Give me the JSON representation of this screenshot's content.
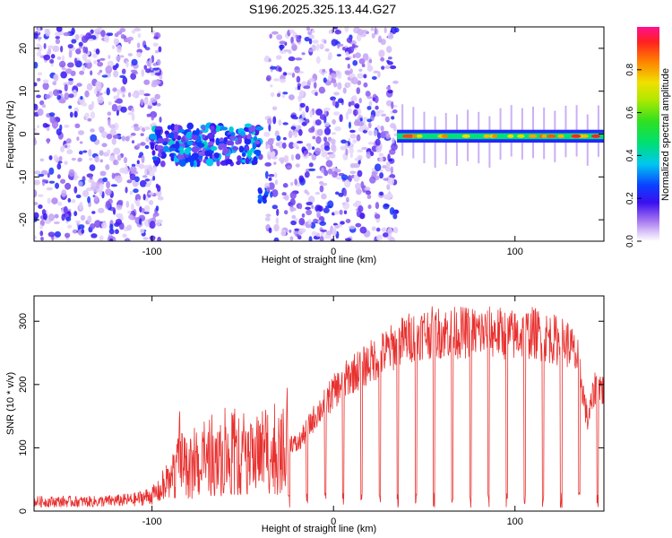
{
  "figure_title": "S196.2025.325.13.44.G27",
  "chart_data": [
    {
      "type": "heatmap",
      "title": "S196.2025.325.13.44.G27",
      "xlabel": "Height of straight line (km)",
      "ylabel": "Frequency (Hz)",
      "xlim": [
        -165,
        149
      ],
      "ylim": [
        -25,
        25
      ],
      "x_ticks": [
        -100,
        0,
        100
      ],
      "y_ticks": [
        -20,
        -10,
        0,
        10,
        20
      ],
      "x_tick_labels": [
        "-100",
        "0",
        "100"
      ],
      "y_tick_labels": [
        "-20",
        "-10",
        "0",
        "10",
        "20"
      ],
      "colorbar": {
        "label": "Normalized spectral amplitude",
        "range": [
          0,
          1
        ],
        "ticks": [
          0.0,
          0.2,
          0.4,
          0.6,
          0.8
        ],
        "tick_labels": [
          "0.0",
          "0.2",
          "0.4",
          "0.6",
          "0.8"
        ],
        "colormap": "rainbow"
      },
      "regions": [
        {
          "name": "scattered noise",
          "x_range": [
            -165,
            -95
          ],
          "freq_range": [
            -25,
            25
          ],
          "amplitude": 0.1
        },
        {
          "name": "blank band",
          "x_range": [
            -95,
            -40
          ],
          "freq_range": [
            3,
            25
          ],
          "amplitude": 0.0
        },
        {
          "name": "broadened tone",
          "x_range": [
            -100,
            -40
          ],
          "freq_range": [
            -8,
            3
          ],
          "amplitude": 0.3
        },
        {
          "name": "transition cluster",
          "x_range": [
            -41,
            -36
          ],
          "freq_range": [
            -16,
            -12
          ],
          "amplitude": 0.25
        },
        {
          "name": "scattered noise",
          "x_range": [
            -37,
            35
          ],
          "freq_range": [
            -25,
            25
          ],
          "amplitude": 0.1
        },
        {
          "name": "stable tone",
          "x_range": [
            35,
            149
          ],
          "freq_range": [
            -2,
            1
          ],
          "amplitude": 0.85
        }
      ]
    },
    {
      "type": "line",
      "xlabel": "Height of straight line (km)",
      "ylabel": "SNR (10 * v/v)",
      "xlim": [
        -165,
        149
      ],
      "ylim": [
        0,
        340
      ],
      "x_ticks": [
        -100,
        0,
        100
      ],
      "y_ticks": [
        0,
        100,
        200,
        300
      ],
      "x_tick_labels": [
        "-100",
        "0",
        "100"
      ],
      "y_tick_labels": [
        "0",
        "100",
        "200",
        "300"
      ],
      "line_color": "#e8312f",
      "series": [
        {
          "name": "SNR",
          "x": [
            -165,
            -150,
            -130,
            -110,
            -100,
            -90,
            -85,
            -80,
            -70,
            -60,
            -50,
            -40,
            -30,
            -25,
            -20,
            -10,
            0,
            10,
            20,
            30,
            40,
            50,
            60,
            70,
            80,
            90,
            100,
            110,
            120,
            130,
            135,
            140,
            145,
            149
          ],
          "y": [
            15,
            15,
            15,
            18,
            25,
            40,
            80,
            60,
            70,
            80,
            75,
            90,
            80,
            120,
            110,
            160,
            200,
            230,
            250,
            270,
            290,
            300,
            300,
            300,
            300,
            300,
            295,
            300,
            290,
            280,
            250,
            150,
            220,
            200
          ]
        }
      ],
      "dropout_pattern": "periodic drops to near zero for x from -25 to 149 km"
    }
  ]
}
